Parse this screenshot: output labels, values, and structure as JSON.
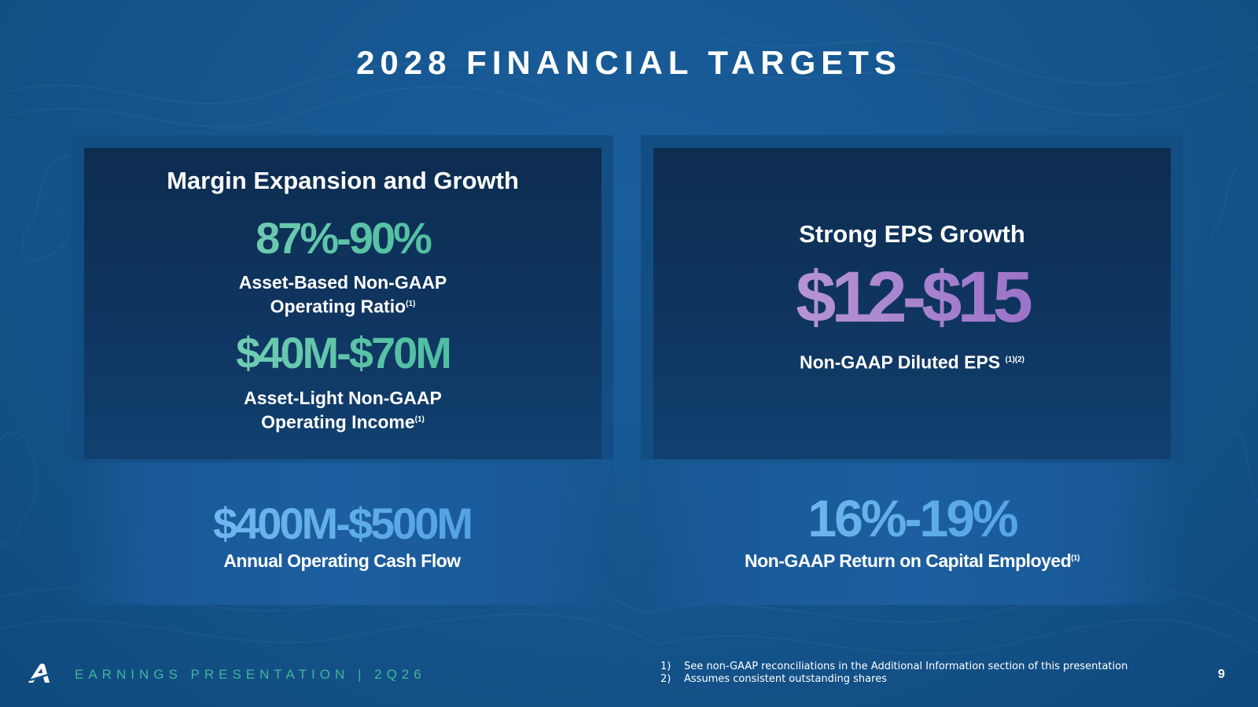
{
  "slide": {
    "title": "2028 FINANCIAL TARGETS",
    "page_number": "9"
  },
  "left_panel": {
    "heading": "Margin Expansion and Growth",
    "metric1": {
      "value": "87%-90%",
      "label_line1": "Asset-Based Non-GAAP",
      "label_line2": "Operating Ratio",
      "footnote": "(1)"
    },
    "metric2": {
      "value": "$40M-$70M",
      "label_line1": "Asset-Light Non-GAAP",
      "label_line2": "Operating Income",
      "footnote": "(1)"
    }
  },
  "right_panel": {
    "heading": "Strong EPS Growth",
    "value": "$12-$15",
    "label": "Non-GAAP Diluted EPS",
    "footnote": "(1)(2)"
  },
  "left_band": {
    "value": "$400M-$500M",
    "label": "Annual Operating Cash Flow"
  },
  "right_band": {
    "value": "16%-19%",
    "label": "Non-GAAP Return on Capital Employed",
    "footnote": "(1)"
  },
  "footer": {
    "brand": "EARNINGS PRESENTATION",
    "separator": "|",
    "period": "2Q26",
    "logo_icon": "arcbest-a-logo-icon",
    "notes": [
      {
        "num": "1)",
        "text": "See non-GAAP reconciliations in the Additional Information section of this presentation"
      },
      {
        "num": "2)",
        "text": "Assumes consistent outstanding shares"
      }
    ]
  },
  "colors": {
    "background": "#15568f",
    "panel_dark": "#0d2d50",
    "accent_green": "#59c3a6",
    "accent_purple": "#a884cf",
    "accent_blue": "#5aa9e6"
  }
}
